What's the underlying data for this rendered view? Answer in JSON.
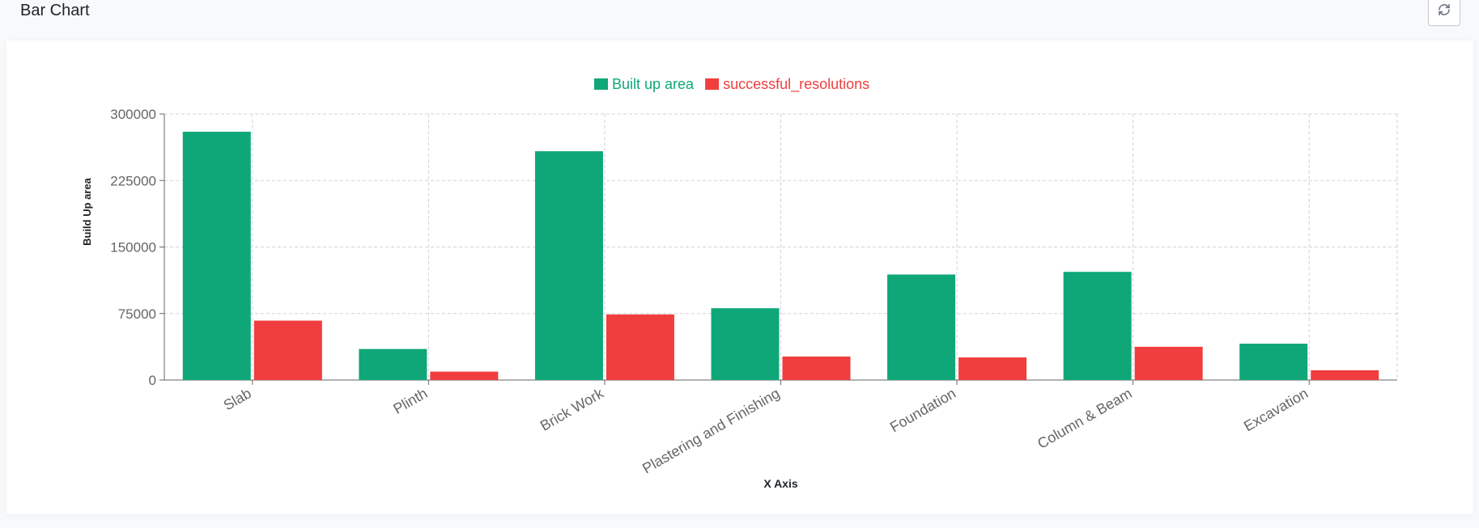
{
  "header": {
    "title": "Bar Chart",
    "refresh_icon": "refresh-icon"
  },
  "chart_data": {
    "type": "bar",
    "xlabel": "X Axis",
    "ylabel": "Build Up area",
    "ylim": [
      0,
      300000
    ],
    "yticks": [
      0,
      75000,
      150000,
      225000,
      300000
    ],
    "grid": true,
    "legend_position": "top-center",
    "categories": [
      "Slab",
      "Plinth",
      "Brick Work",
      "Plastering and Finishing",
      "Foundation",
      "Column & Beam",
      "Excavation"
    ],
    "series": [
      {
        "name": "Built up area",
        "color": "#10a778",
        "values": [
          280000,
          35000,
          258000,
          81000,
          119000,
          122000,
          41000
        ]
      },
      {
        "name": "successful_resolutions",
        "color": "#f03e3e",
        "values": [
          67000,
          9500,
          74000,
          26500,
          25500,
          37500,
          11000
        ]
      }
    ]
  }
}
